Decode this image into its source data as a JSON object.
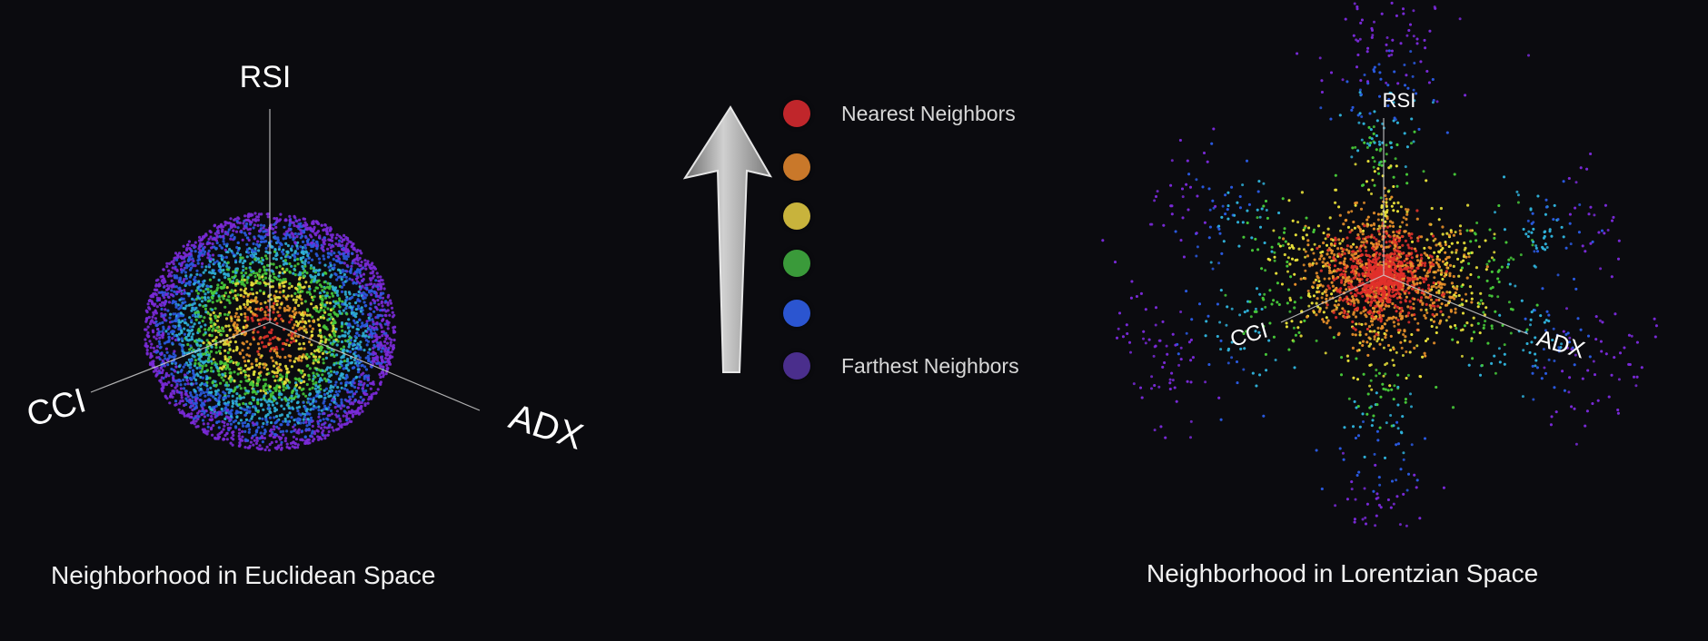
{
  "euclidean": {
    "caption": "Neighborhood in Euclidean Space",
    "axes": {
      "rsi": "RSI",
      "cci": "CCI",
      "adx": "ADX"
    }
  },
  "lorentzian": {
    "caption": "Neighborhood in Lorentzian Space",
    "axes": {
      "rsi": "RSI",
      "cci": "CCI",
      "adx": "ADX"
    }
  },
  "legend": {
    "arrow_icon": "up-arrow-icon",
    "items": [
      {
        "label": "Nearest Neighbors",
        "color": "#c0262b"
      },
      {
        "label": "",
        "color": "#c9782a"
      },
      {
        "label": "",
        "color": "#c8b33c"
      },
      {
        "label": "",
        "color": "#3a9a3a"
      },
      {
        "label": "",
        "color": "#2b55d0"
      },
      {
        "label": "Farthest Neighbors",
        "color": "#4a2e8c"
      }
    ]
  },
  "neighbor_colors": [
    "#e0302a",
    "#e8902a",
    "#e8e03a",
    "#46c83a",
    "#2fb0d8",
    "#2a5ae0",
    "#7a2ad8"
  ]
}
